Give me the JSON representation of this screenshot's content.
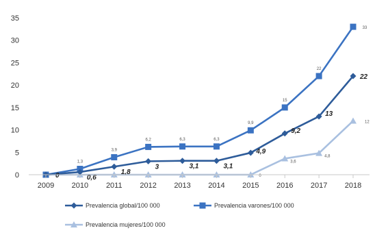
{
  "chart_data": {
    "type": "line",
    "x": [
      "2009",
      "2010",
      "2011",
      "2012",
      "2013",
      "2014",
      "2015",
      "2016",
      "2017",
      "2018"
    ],
    "ylim": [
      0,
      35
    ],
    "yticks": [
      0,
      5,
      10,
      15,
      20,
      25,
      30,
      35
    ],
    "grid": false,
    "legend_position": "bottom",
    "series": [
      {
        "name": "Prevalencia global/100 000",
        "color": "#2e5c9a",
        "marker": "diamond",
        "values": [
          0,
          0.6,
          1.8,
          3,
          3.1,
          3.1,
          4.9,
          9.2,
          13,
          22
        ],
        "labels": [
          "0",
          "0,6",
          "1,8",
          "3",
          "3,1",
          "3,1",
          "4,9",
          "9,2",
          "13",
          "22"
        ]
      },
      {
        "name": "Prevalencia varones/100 000",
        "color": "#3b73c2",
        "marker": "square",
        "values": [
          0,
          1.3,
          3.9,
          6.2,
          6.3,
          6.3,
          9.9,
          15,
          22,
          33
        ],
        "labels": [
          "",
          "1,3",
          "3,9",
          "6,2",
          "6,3",
          "6,3",
          "9,9",
          "15",
          "22",
          "33"
        ]
      },
      {
        "name": "Prevalencia mujeres/100 000",
        "color": "#a9c0e0",
        "marker": "triangle",
        "values": [
          0,
          0,
          0,
          0,
          0,
          0,
          0,
          3.6,
          4.8,
          12
        ],
        "labels": [
          "",
          "",
          "",
          "",
          "",
          "",
          "0",
          "3,6",
          "4,8",
          "12"
        ]
      }
    ]
  }
}
